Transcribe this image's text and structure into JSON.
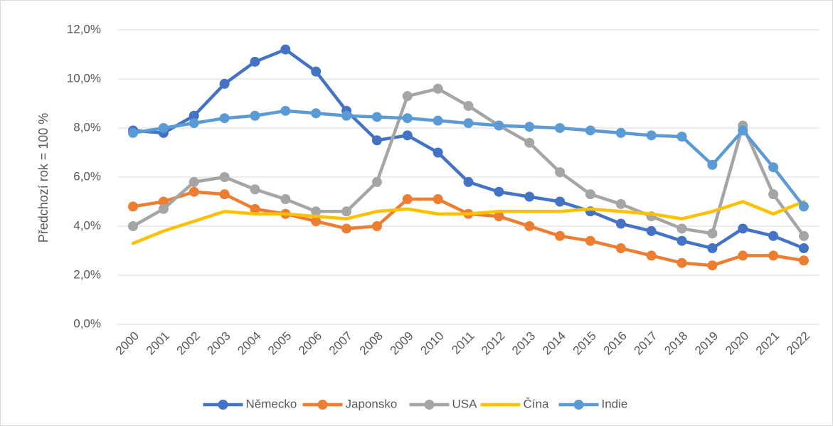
{
  "chart_data": {
    "type": "line",
    "y_label": "Předchozí rok = 100 %",
    "categories": [
      "2000",
      "2001",
      "2002",
      "2003",
      "2004",
      "2005",
      "2006",
      "2007",
      "2008",
      "2009",
      "2010",
      "2011",
      "2012",
      "2013",
      "2014",
      "2015",
      "2016",
      "2017",
      "2018",
      "2019",
      "2020",
      "2021",
      "2022"
    ],
    "series": [
      {
        "name": "Německo",
        "color": "#4472c4",
        "markers": true,
        "values": [
          7.9,
          7.8,
          8.5,
          9.8,
          10.7,
          11.2,
          10.3,
          8.7,
          7.5,
          7.7,
          7.0,
          5.8,
          5.4,
          5.2,
          5.0,
          4.6,
          4.1,
          3.8,
          3.4,
          3.1,
          3.9,
          3.6,
          3.1
        ]
      },
      {
        "name": "Japonsko",
        "color": "#ed7d31",
        "markers": true,
        "values": [
          4.8,
          5.0,
          5.4,
          5.3,
          4.7,
          4.5,
          4.2,
          3.9,
          4.0,
          5.1,
          5.1,
          4.5,
          4.4,
          4.0,
          3.6,
          3.4,
          3.1,
          2.8,
          2.5,
          2.4,
          2.8,
          2.8,
          2.6
        ]
      },
      {
        "name": "USA",
        "color": "#a5a5a5",
        "markers": true,
        "values": [
          4.0,
          4.7,
          5.8,
          6.0,
          5.5,
          5.1,
          4.6,
          4.6,
          5.8,
          9.3,
          9.6,
          8.9,
          8.1,
          7.4,
          6.2,
          5.3,
          4.9,
          4.4,
          3.9,
          3.7,
          8.1,
          5.3,
          3.6
        ]
      },
      {
        "name": "Čína",
        "color": "#ffc000",
        "markers": false,
        "values": [
          3.3,
          3.8,
          4.2,
          4.6,
          4.5,
          4.5,
          4.4,
          4.3,
          4.6,
          4.7,
          4.5,
          4.5,
          4.6,
          4.6,
          4.6,
          4.7,
          4.6,
          4.5,
          4.3,
          4.6,
          5.0,
          4.5,
          5.0
        ]
      },
      {
        "name": "Indie",
        "color": "#5b9bd5",
        "markers": true,
        "values": [
          7.8,
          8.0,
          8.2,
          8.4,
          8.5,
          8.7,
          8.6,
          8.5,
          8.45,
          8.4,
          8.3,
          8.2,
          8.1,
          8.05,
          8.0,
          7.9,
          7.8,
          7.7,
          7.65,
          6.5,
          7.9,
          6.4,
          4.8
        ]
      }
    ],
    "ylim": [
      0,
      12
    ],
    "yticks": [
      {
        "value": 0,
        "label": "0,0%"
      },
      {
        "value": 2,
        "label": "2,0%"
      },
      {
        "value": 4,
        "label": "4,0%"
      },
      {
        "value": 6,
        "label": "6,0%"
      },
      {
        "value": 8,
        "label": "8,0%"
      },
      {
        "value": 10,
        "label": "10,0%"
      },
      {
        "value": 12,
        "label": "12,0%"
      }
    ],
    "grid": true,
    "legend": "bottom"
  }
}
